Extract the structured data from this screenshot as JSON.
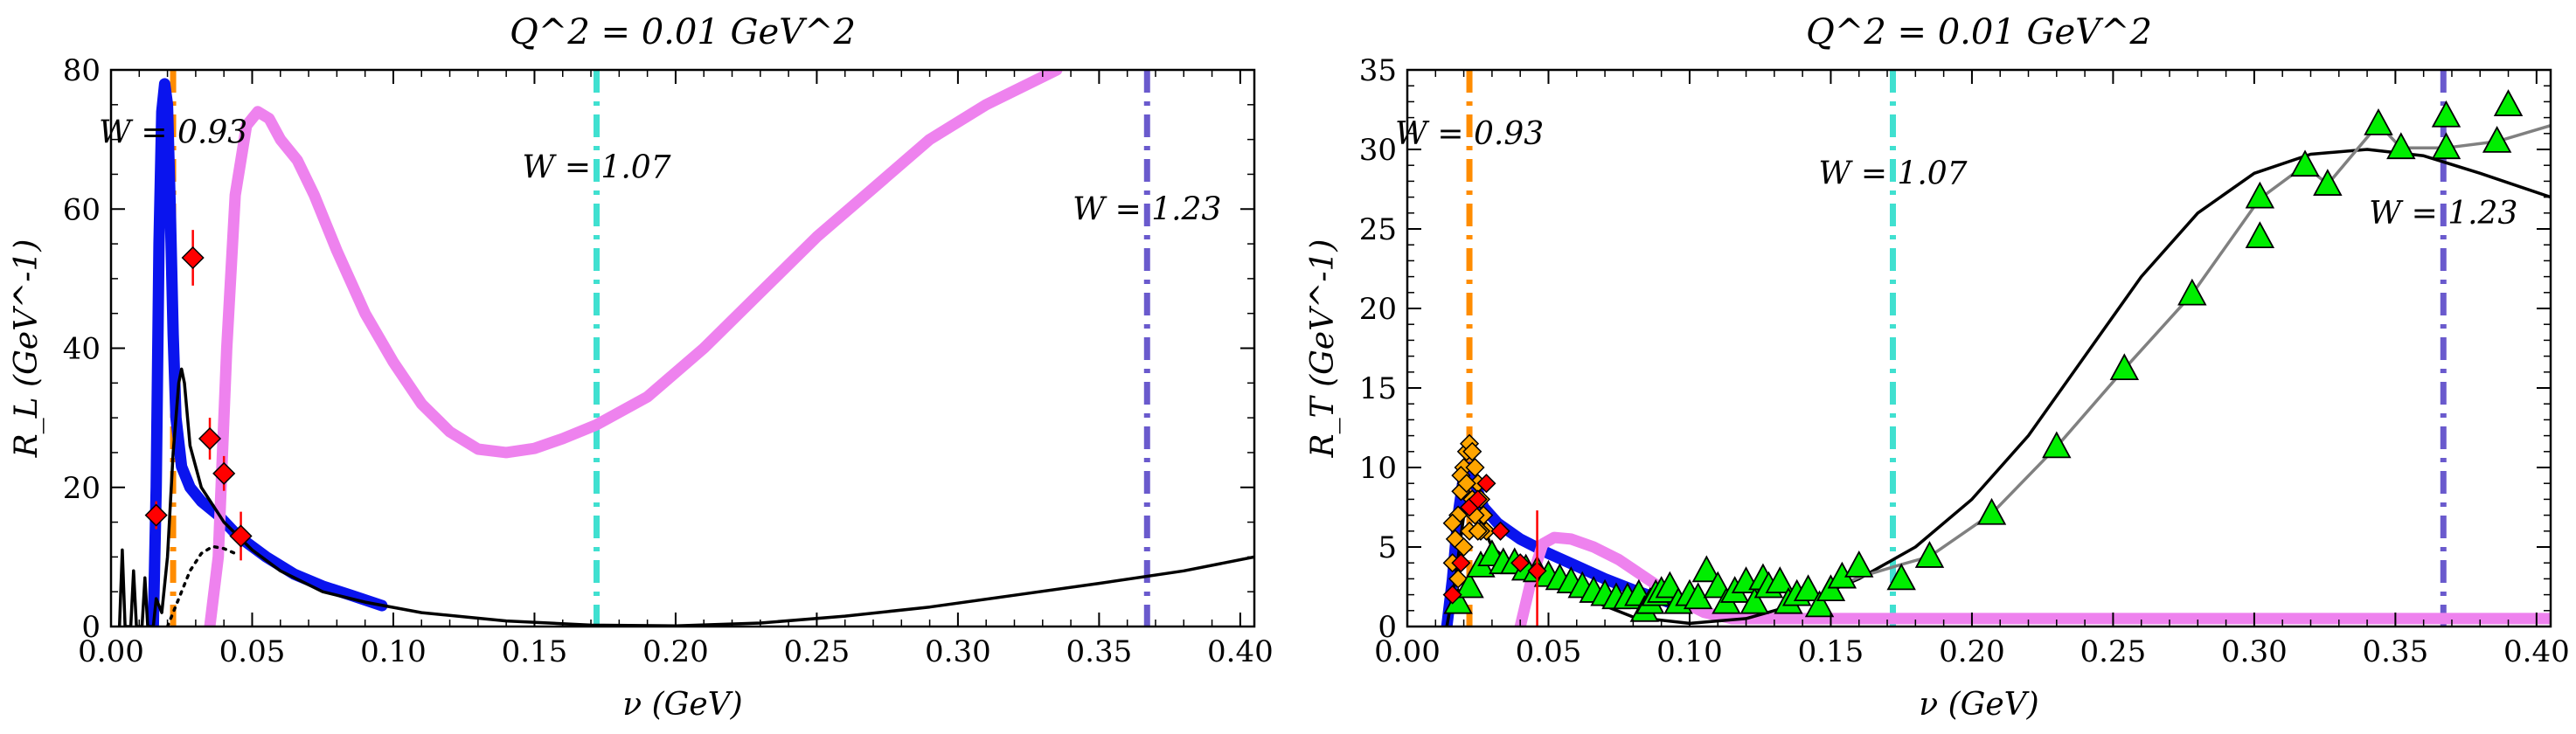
{
  "chart_data": [
    {
      "type": "line",
      "title": "Q^2 = 0.01 GeV^2",
      "xlabel": "ν (GeV)",
      "ylabel": "R_L (GeV^-1)",
      "xlim": [
        0.0,
        0.405
      ],
      "ylim": [
        0,
        80
      ],
      "xticks": [
        "0.00",
        "0.05",
        "0.10",
        "0.15",
        "0.20",
        "0.25",
        "0.30",
        "0.35",
        "0.40"
      ],
      "yticks": [
        "0",
        "20",
        "40",
        "60",
        "80"
      ],
      "vlines": [
        {
          "x": 0.022,
          "label": "W = 0.93",
          "color": "#ff8c00",
          "label_y": 71
        },
        {
          "x": 0.172,
          "label": "W = 1.07",
          "color": "#40e0d0",
          "label_y": 66
        },
        {
          "x": 0.367,
          "label": "W = 1.23",
          "color": "#6a5acd",
          "label_y": 60
        }
      ],
      "series": [
        {
          "style": "blue",
          "color": "#0a14ee",
          "points": [
            [
              0.015,
              0
            ],
            [
              0.016,
              20
            ],
            [
              0.017,
              55
            ],
            [
              0.018,
              74
            ],
            [
              0.019,
              78
            ],
            [
              0.02,
              75
            ],
            [
              0.021,
              60
            ],
            [
              0.022,
              42
            ],
            [
              0.023,
              30
            ],
            [
              0.025,
              23
            ],
            [
              0.028,
              20
            ],
            [
              0.032,
              18
            ],
            [
              0.038,
              16
            ],
            [
              0.045,
              13
            ],
            [
              0.055,
              10
            ],
            [
              0.065,
              7.5
            ],
            [
              0.075,
              5.8
            ],
            [
              0.085,
              4.5
            ],
            [
              0.096,
              3.0
            ]
          ]
        },
        {
          "style": "violet",
          "color": "#ee82ee",
          "points": [
            [
              0.035,
              0
            ],
            [
              0.038,
              10
            ],
            [
              0.041,
              40
            ],
            [
              0.044,
              62
            ],
            [
              0.048,
              72
            ],
            [
              0.052,
              74
            ],
            [
              0.056,
              73
            ],
            [
              0.06,
              70
            ],
            [
              0.066,
              67
            ],
            [
              0.072,
              62
            ],
            [
              0.08,
              54
            ],
            [
              0.09,
              45
            ],
            [
              0.1,
              38
            ],
            [
              0.11,
              32
            ],
            [
              0.12,
              28
            ],
            [
              0.13,
              25.5
            ],
            [
              0.14,
              25
            ],
            [
              0.15,
              25.6
            ],
            [
              0.16,
              27
            ],
            [
              0.172,
              29
            ],
            [
              0.19,
              33
            ],
            [
              0.21,
              40
            ],
            [
              0.23,
              48
            ],
            [
              0.25,
              56
            ],
            [
              0.27,
              63
            ],
            [
              0.29,
              70
            ],
            [
              0.31,
              75
            ],
            [
              0.335,
              80
            ]
          ]
        },
        {
          "style": "black",
          "color": "#000000",
          "points": [
            [
              0.003,
              0
            ],
            [
              0.004,
              11
            ],
            [
              0.005,
              0
            ],
            [
              0.007,
              0
            ],
            [
              0.008,
              8
            ],
            [
              0.009,
              0
            ],
            [
              0.011,
              0
            ],
            [
              0.012,
              7
            ],
            [
              0.013,
              0
            ],
            [
              0.015,
              0
            ],
            [
              0.016,
              4
            ],
            [
              0.018,
              2
            ],
            [
              0.02,
              10
            ],
            [
              0.022,
              25
            ],
            [
              0.024,
              35
            ],
            [
              0.025,
              37
            ],
            [
              0.026,
              35
            ],
            [
              0.028,
              26
            ],
            [
              0.032,
              20
            ],
            [
              0.04,
              15
            ],
            [
              0.05,
              11
            ],
            [
              0.06,
              8
            ],
            [
              0.075,
              5
            ],
            [
              0.09,
              3.5
            ],
            [
              0.11,
              2
            ],
            [
              0.14,
              0.8
            ],
            [
              0.17,
              0.2
            ],
            [
              0.2,
              0.1
            ],
            [
              0.23,
              0.5
            ],
            [
              0.26,
              1.5
            ],
            [
              0.29,
              2.8
            ],
            [
              0.32,
              4.5
            ],
            [
              0.35,
              6.2
            ],
            [
              0.38,
              8
            ],
            [
              0.405,
              10
            ]
          ]
        },
        {
          "style": "dotted",
          "color": "#000000",
          "points": [
            [
              0.02,
              0
            ],
            [
              0.024,
              4
            ],
            [
              0.028,
              8
            ],
            [
              0.032,
              10.5
            ],
            [
              0.036,
              11.5
            ],
            [
              0.04,
              11.2
            ],
            [
              0.044,
              10.5
            ]
          ]
        }
      ],
      "data_points": [
        {
          "x": 0.016,
          "y": 16,
          "err": 2
        },
        {
          "x": 0.029,
          "y": 53,
          "err": 4
        },
        {
          "x": 0.035,
          "y": 27,
          "err": 3
        },
        {
          "x": 0.04,
          "y": 22,
          "err": 2.5
        },
        {
          "x": 0.046,
          "y": 13,
          "err": 3.5
        }
      ]
    },
    {
      "type": "line",
      "title": "Q^2 = 0.01 GeV^2",
      "xlabel": "ν (GeV)",
      "ylabel": "R_T (GeV^-1)",
      "xlim": [
        0.0,
        0.405
      ],
      "ylim": [
        0,
        35
      ],
      "xticks": [
        "0.00",
        "0.05",
        "0.10",
        "0.15",
        "0.20",
        "0.25",
        "0.30",
        "0.35",
        "0.40"
      ],
      "yticks": [
        "0",
        "5",
        "10",
        "15",
        "20",
        "25",
        "30",
        "35"
      ],
      "vlines": [
        {
          "x": 0.022,
          "label": "W = 0.93",
          "color": "#ff8c00",
          "label_y": 31
        },
        {
          "x": 0.172,
          "label": "W = 1.07",
          "color": "#40e0d0",
          "label_y": 28.5
        },
        {
          "x": 0.367,
          "label": "W = 1.23",
          "color": "#6a5acd",
          "label_y": 26
        }
      ],
      "series": [
        {
          "style": "blue",
          "color": "#0a14ee",
          "points": [
            [
              0.014,
              0
            ],
            [
              0.016,
              3
            ],
            [
              0.018,
              7
            ],
            [
              0.02,
              9.5
            ],
            [
              0.022,
              10
            ],
            [
              0.024,
              9
            ],
            [
              0.027,
              7.5
            ],
            [
              0.032,
              6.5
            ],
            [
              0.04,
              5.5
            ],
            [
              0.05,
              4.6
            ],
            [
              0.06,
              3.8
            ],
            [
              0.07,
              3.0
            ],
            [
              0.08,
              2.3
            ],
            [
              0.09,
              1.7
            ],
            [
              0.096,
              1.3
            ]
          ]
        },
        {
          "style": "violet",
          "color": "#ee82ee",
          "points": [
            [
              0.04,
              0
            ],
            [
              0.044,
              3
            ],
            [
              0.048,
              5.2
            ],
            [
              0.052,
              5.6
            ],
            [
              0.058,
              5.5
            ],
            [
              0.066,
              5.0
            ],
            [
              0.075,
              4.2
            ],
            [
              0.085,
              3.0
            ],
            [
              0.095,
              1.8
            ],
            [
              0.105,
              0.9
            ],
            [
              0.115,
              0.5
            ],
            [
              0.13,
              0.5
            ],
            [
              0.2,
              0.5
            ],
            [
              0.3,
              0.5
            ],
            [
              0.405,
              0.5
            ]
          ]
        },
        {
          "style": "black",
          "color": "#000000",
          "points": [
            [
              0.014,
              0
            ],
            [
              0.017,
              3
            ],
            [
              0.02,
              7
            ],
            [
              0.022,
              8
            ],
            [
              0.025,
              7
            ],
            [
              0.03,
              5
            ],
            [
              0.04,
              3.5
            ],
            [
              0.06,
              2
            ],
            [
              0.08,
              0.6
            ],
            [
              0.1,
              0.2
            ],
            [
              0.12,
              0.5
            ],
            [
              0.14,
              1.5
            ],
            [
              0.16,
              3
            ],
            [
              0.18,
              5
            ],
            [
              0.2,
              8
            ],
            [
              0.22,
              12
            ],
            [
              0.24,
              17
            ],
            [
              0.26,
              22
            ],
            [
              0.28,
              26
            ],
            [
              0.3,
              28.5
            ],
            [
              0.32,
              29.7
            ],
            [
              0.34,
              30
            ],
            [
              0.36,
              29.6
            ],
            [
              0.38,
              28.5
            ],
            [
              0.405,
              27
            ]
          ]
        },
        {
          "style": "gray",
          "color": "#808080",
          "points": [
            [
              0.15,
              2.3
            ],
            [
              0.16,
              3.1
            ],
            [
              0.175,
              3.9
            ],
            [
              0.185,
              4.4
            ],
            [
              0.207,
              7.1
            ],
            [
              0.23,
              11.3
            ],
            [
              0.254,
              16.2
            ],
            [
              0.278,
              20.9
            ],
            [
              0.302,
              26.9
            ],
            [
              0.318,
              29.0
            ],
            [
              0.326,
              27.8
            ],
            [
              0.344,
              31.6
            ],
            [
              0.352,
              30.1
            ],
            [
              0.368,
              30.1
            ],
            [
              0.386,
              30.5
            ],
            [
              0.405,
              31.5
            ]
          ]
        }
      ],
      "green_triangles": [
        [
          0.018,
          1.5
        ],
        [
          0.022,
          2.5
        ],
        [
          0.026,
          3.8
        ],
        [
          0.03,
          4.5
        ],
        [
          0.034,
          4.0
        ],
        [
          0.038,
          4.0
        ],
        [
          0.042,
          3.6
        ],
        [
          0.046,
          3.5
        ],
        [
          0.05,
          3.2
        ],
        [
          0.054,
          3.0
        ],
        [
          0.058,
          2.8
        ],
        [
          0.062,
          2.5
        ],
        [
          0.066,
          2.2
        ],
        [
          0.07,
          2.0
        ],
        [
          0.074,
          1.8
        ],
        [
          0.078,
          1.8
        ],
        [
          0.082,
          2.0
        ],
        [
          0.084,
          1.0
        ],
        [
          0.086,
          1.5
        ],
        [
          0.088,
          2.0
        ],
        [
          0.09,
          2.2
        ],
        [
          0.093,
          2.5
        ],
        [
          0.096,
          1.5
        ],
        [
          0.1,
          2.0
        ],
        [
          0.103,
          1.8
        ],
        [
          0.106,
          3.5
        ],
        [
          0.11,
          2.5
        ],
        [
          0.113,
          1.5
        ],
        [
          0.116,
          2.2
        ],
        [
          0.12,
          2.8
        ],
        [
          0.123,
          1.5
        ],
        [
          0.126,
          3.0
        ],
        [
          0.128,
          2.5
        ],
        [
          0.132,
          2.8
        ],
        [
          0.135,
          1.5
        ],
        [
          0.138,
          2.0
        ],
        [
          0.142,
          2.3
        ],
        [
          0.146,
          1.3
        ],
        [
          0.15,
          2.3
        ],
        [
          0.154,
          3.1
        ],
        [
          0.16,
          3.8
        ],
        [
          0.175,
          3.0
        ],
        [
          0.185,
          4.4
        ],
        [
          0.207,
          7.1
        ],
        [
          0.23,
          11.3
        ],
        [
          0.254,
          16.2
        ],
        [
          0.278,
          20.9
        ],
        [
          0.302,
          27.0
        ],
        [
          0.302,
          24.5
        ],
        [
          0.318,
          29.0
        ],
        [
          0.326,
          27.8
        ],
        [
          0.344,
          31.6
        ],
        [
          0.352,
          30.1
        ],
        [
          0.368,
          32.1
        ],
        [
          0.368,
          30.1
        ],
        [
          0.386,
          30.5
        ],
        [
          0.39,
          32.8
        ]
      ],
      "orange_diamonds": [
        [
          0.016,
          4
        ],
        [
          0.017,
          5.5
        ],
        [
          0.018,
          7
        ],
        [
          0.019,
          8.5
        ],
        [
          0.02,
          10
        ],
        [
          0.021,
          11
        ],
        [
          0.022,
          11.5
        ],
        [
          0.023,
          11
        ],
        [
          0.024,
          10
        ],
        [
          0.025,
          9
        ],
        [
          0.026,
          8
        ],
        [
          0.027,
          7
        ],
        [
          0.028,
          6
        ],
        [
          0.018,
          3
        ],
        [
          0.02,
          5
        ],
        [
          0.022,
          6
        ],
        [
          0.024,
          7
        ],
        [
          0.026,
          6
        ],
        [
          0.016,
          6.5
        ],
        [
          0.019,
          9.5
        ],
        [
          0.021,
          9
        ],
        [
          0.023,
          8
        ],
        [
          0.025,
          6
        ]
      ],
      "red_diamonds": [
        [
          0.016,
          2
        ],
        [
          0.019,
          4
        ],
        [
          0.022,
          7.5
        ],
        [
          0.025,
          8
        ],
        [
          0.028,
          9
        ],
        [
          0.033,
          6
        ],
        [
          0.04,
          4
        ],
        [
          0.046,
          3.5
        ]
      ]
    }
  ]
}
